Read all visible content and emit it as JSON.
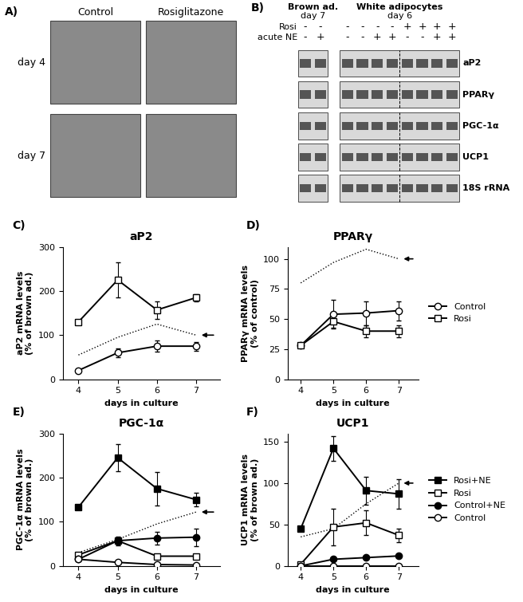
{
  "panel_a": {
    "label": "A)",
    "columns": [
      "Control",
      "Rosiglitazone"
    ],
    "rows": [
      "day 4",
      "day 7"
    ]
  },
  "panel_b": {
    "label": "B)",
    "row_labels": [
      "Rosi",
      "acute NE"
    ],
    "groups": [
      {
        "title": "Brown ad.",
        "day": "day 7",
        "rosi": [
          "-",
          "-"
        ],
        "acute_ne": [
          "-",
          "+"
        ]
      },
      {
        "title": "White adipocytes",
        "day": "day 6",
        "rosi": [
          "-",
          "-",
          "-",
          "-",
          "+",
          "+",
          "+",
          "+"
        ],
        "acute_ne": [
          "-",
          "-",
          "+",
          "+",
          "-",
          "-",
          "+",
          "+"
        ]
      }
    ],
    "genes": [
      "aP2",
      "PPARγ",
      "PGC-1α",
      "UCP1",
      "18S rRNA"
    ]
  },
  "chart_data": [
    {
      "type": "line",
      "panel": "C)",
      "title": "aP2",
      "x": [
        4,
        5,
        6,
        7
      ],
      "xlabel": "days in culture",
      "ylabel": "aP2 mRNA levels\n(% of brown ad.)",
      "xlim": [
        3.6,
        7.6
      ],
      "xticks": [
        4,
        5,
        6,
        7
      ],
      "ylim": [
        0,
        300
      ],
      "yticks": [
        0,
        100,
        200,
        300
      ],
      "series": [
        {
          "color": "#000000",
          "marker": "none",
          "line_style": "dotted",
          "values": [
            55,
            95,
            125,
            100
          ]
        },
        {
          "color": "#000000",
          "marker": "square_open",
          "line_style": "solid",
          "values": [
            130,
            225,
            157,
            185
          ],
          "errors": [
            null,
            40,
            20,
            8
          ]
        },
        {
          "color": "#000000",
          "marker": "circle_open",
          "line_style": "solid",
          "values": [
            20,
            60,
            75,
            75
          ],
          "errors": [
            null,
            10,
            12,
            10
          ]
        }
      ]
    },
    {
      "type": "line",
      "panel": "D)",
      "title": "PPARγ",
      "x": [
        4,
        5,
        6,
        7
      ],
      "xlabel": "days in culture",
      "ylabel": "PPARγ mRNA levels\n(% of control)",
      "xlim": [
        3.6,
        7.6
      ],
      "xticks": [
        4,
        5,
        6,
        7
      ],
      "ylim": [
        0,
        110
      ],
      "yticks": [
        0,
        25,
        50,
        75,
        100
      ],
      "legend": "right",
      "series": [
        {
          "color": "#000000",
          "marker": "none",
          "line_style": "dotted",
          "values": [
            80,
            97,
            108,
            100
          ]
        },
        {
          "name": "Control",
          "color": "#000000",
          "marker": "circle_open",
          "line_style": "solid",
          "values": [
            28,
            54,
            55,
            57
          ],
          "errors": [
            null,
            12,
            10,
            8
          ]
        },
        {
          "name": "Rosi",
          "color": "#000000",
          "marker": "square_open",
          "line_style": "solid",
          "values": [
            28,
            48,
            40,
            40
          ],
          "errors": [
            null,
            5,
            5,
            5
          ]
        }
      ]
    },
    {
      "type": "line",
      "panel": "E)",
      "title": "PGC-1α",
      "x": [
        4,
        5,
        6,
        7
      ],
      "xlabel": "days in culture",
      "ylabel": "PGC-1α mRNA levels\n(% of brown ad.)",
      "xlim": [
        3.6,
        7.6
      ],
      "xticks": [
        4,
        5,
        6,
        7
      ],
      "ylim": [
        0,
        300
      ],
      "yticks": [
        0,
        100,
        200,
        300
      ],
      "series": [
        {
          "color": "#000000",
          "marker": "none",
          "line_style": "dotted",
          "values": [
            30,
            60,
            95,
            122
          ]
        },
        {
          "color": "#000000",
          "marker": "square",
          "line_style": "solid",
          "values": [
            133,
            245,
            175,
            150
          ],
          "errors": [
            null,
            30,
            38,
            15
          ]
        },
        {
          "color": "#000000",
          "marker": "square_open",
          "line_style": "solid",
          "values": [
            25,
            57,
            22,
            22
          ],
          "errors": [
            null,
            8,
            5,
            5
          ]
        },
        {
          "color": "#000000",
          "marker": "circle",
          "line_style": "solid",
          "values": [
            15,
            57,
            63,
            65
          ],
          "errors": [
            null,
            10,
            15,
            20
          ]
        },
        {
          "color": "#000000",
          "marker": "circle_open",
          "line_style": "solid",
          "values": [
            15,
            8,
            3,
            2
          ]
        }
      ]
    },
    {
      "type": "line",
      "panel": "F)",
      "title": "UCP1",
      "x": [
        4,
        5,
        6,
        7
      ],
      "xlabel": "days in culture",
      "ylabel": "UCP1 mRNA levels\n(% of brown ad.)",
      "xlim": [
        3.6,
        7.6
      ],
      "xticks": [
        4,
        5,
        6,
        7
      ],
      "ylim": [
        0,
        160
      ],
      "yticks": [
        0,
        50,
        100,
        150
      ],
      "legend": "right",
      "series": [
        {
          "color": "#000000",
          "marker": "none",
          "line_style": "dotted",
          "values": [
            35,
            45,
            75,
            100
          ]
        },
        {
          "name": "Rosi+NE",
          "color": "#000000",
          "marker": "square",
          "line_style": "solid",
          "values": [
            45,
            142,
            91,
            87
          ],
          "errors": [
            null,
            15,
            17,
            18
          ]
        },
        {
          "name": "Rosi",
          "color": "#000000",
          "marker": "square_open",
          "line_style": "solid",
          "values": [
            2,
            47,
            52,
            37
          ],
          "errors": [
            null,
            22,
            15,
            8
          ]
        },
        {
          "name": "Control+NE",
          "color": "#000000",
          "marker": "circle",
          "line_style": "solid",
          "values": [
            0,
            8,
            10,
            12
          ],
          "errors": [
            null,
            2,
            2,
            2
          ]
        },
        {
          "name": "Control",
          "color": "#000000",
          "marker": "circle_open",
          "line_style": "solid",
          "values": [
            0,
            0,
            0,
            0
          ]
        }
      ]
    }
  ]
}
